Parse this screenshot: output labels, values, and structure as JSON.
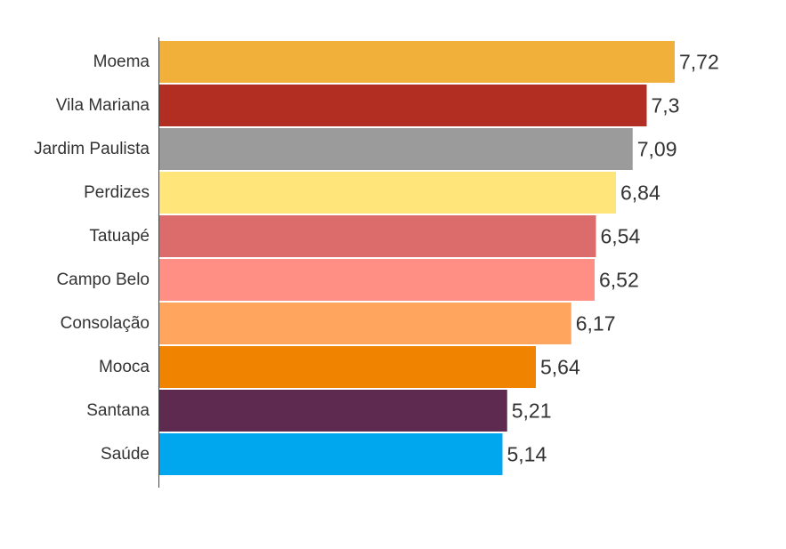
{
  "chart_data": {
    "type": "bar",
    "orientation": "horizontal",
    "title": "",
    "xlabel": "",
    "ylabel": "",
    "xlim": [
      0,
      8
    ],
    "grid": false,
    "legend": "none",
    "categories": [
      "Moema",
      "Vila Mariana",
      "Jardim Paulista",
      "Perdizes",
      "Tatuapé",
      "Campo Belo",
      "Consolação",
      "Mooca",
      "Santana",
      "Saúde"
    ],
    "values": [
      7.72,
      7.3,
      7.09,
      6.84,
      6.54,
      6.52,
      6.17,
      5.64,
      5.21,
      5.14
    ],
    "value_labels": [
      "7,72",
      "7,3",
      "7,09",
      "6,84",
      "6,54",
      "6,52",
      "6,17",
      "5,64",
      "5,21",
      "5,14"
    ],
    "colors": [
      "#F0B03A",
      "#B22D22",
      "#9B9B9B",
      "#FFE57A",
      "#DC6B6B",
      "#FF8E85",
      "#FFA55E",
      "#F08400",
      "#5E2A4F",
      "#00A7EE"
    ]
  }
}
